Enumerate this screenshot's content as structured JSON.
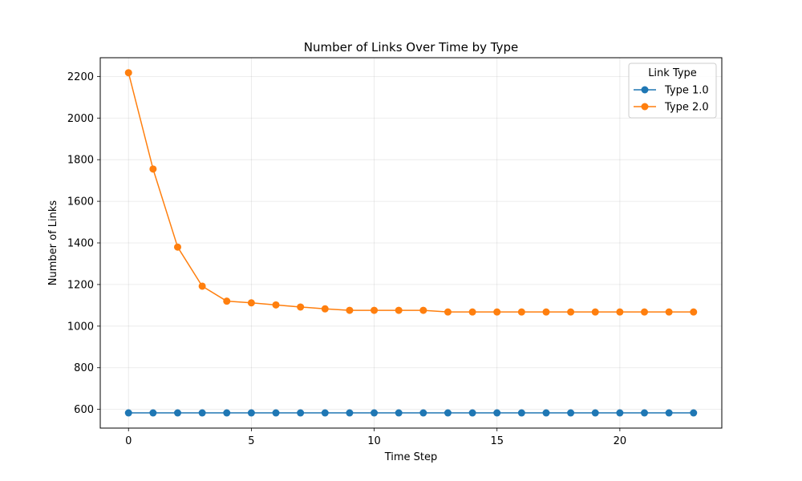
{
  "chart_data": {
    "type": "line",
    "title": "Number of Links Over Time by Type",
    "xlabel": "Time Step",
    "ylabel": "Number of Links",
    "xlim": [
      -1.15,
      24.15
    ],
    "ylim": [
      510,
      2290
    ],
    "xticks": [
      0,
      5,
      10,
      15,
      20
    ],
    "yticks": [
      600,
      800,
      1000,
      1200,
      1400,
      1600,
      1800,
      2000,
      2200
    ],
    "grid": true,
    "legend": {
      "title": "Link Type",
      "placement": "top-right"
    },
    "x": [
      0,
      1,
      2,
      3,
      4,
      5,
      6,
      7,
      8,
      9,
      10,
      11,
      12,
      13,
      14,
      15,
      16,
      17,
      18,
      19,
      20,
      21,
      22,
      23
    ],
    "series": [
      {
        "name": "Type 1.0",
        "color": "#1f77b4",
        "values": [
          583,
          583,
          583,
          583,
          583,
          583,
          583,
          583,
          583,
          583,
          583,
          583,
          583,
          583,
          583,
          583,
          583,
          583,
          583,
          583,
          583,
          583,
          583,
          583
        ]
      },
      {
        "name": "Type 2.0",
        "color": "#ff7f0e",
        "values": [
          2218,
          1755,
          1380,
          1192,
          1120,
          1112,
          1102,
          1092,
          1083,
          1076,
          1076,
          1076,
          1076,
          1068,
          1068,
          1068,
          1068,
          1068,
          1068,
          1068,
          1068,
          1068,
          1068,
          1068
        ]
      }
    ]
  }
}
